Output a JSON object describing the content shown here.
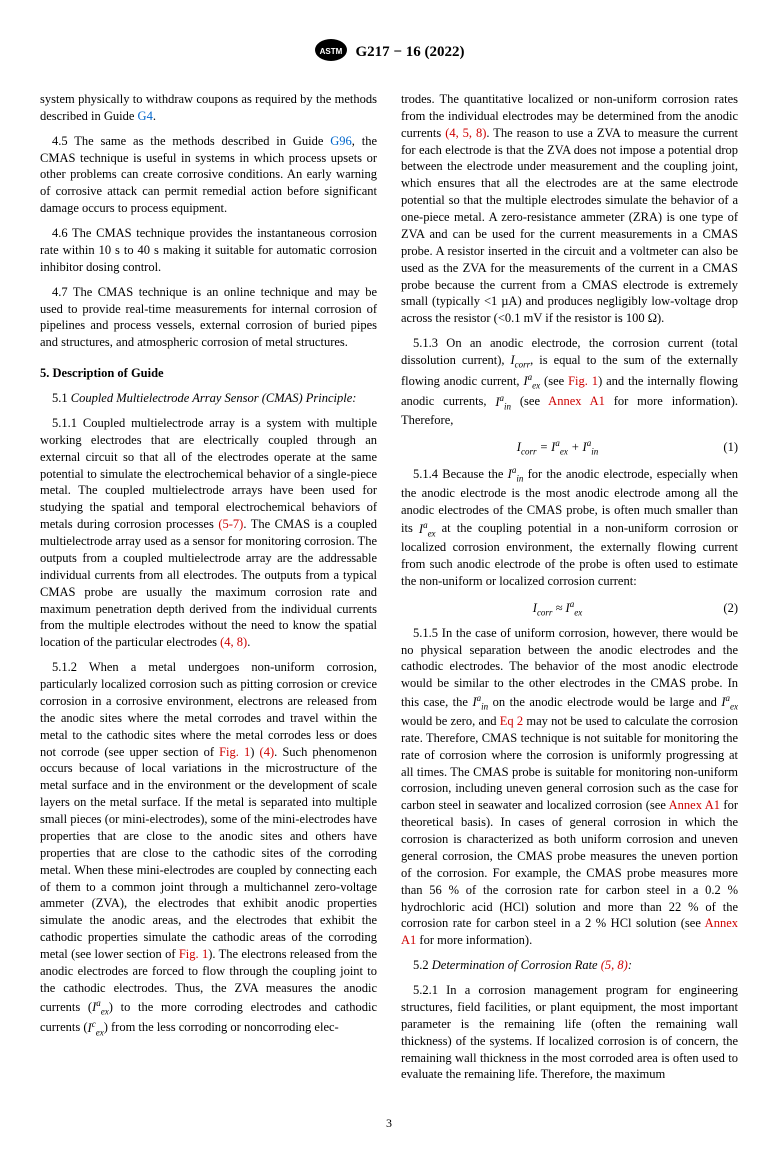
{
  "header": {
    "doc_id": "G217 − 16 (2022)"
  },
  "col1": {
    "p_4_4b": "system physically to withdraw coupons as required by the methods described in Guide ",
    "g4": "G4",
    "p_4_4c": ".",
    "p_4_5a": "4.5 The same as the methods described in Guide ",
    "g96": "G96",
    "p_4_5b": ", the CMAS technique is useful in systems in which process upsets or other problems can create corrosive conditions. An early warning of corrosive attack can permit remedial action before significant damage occurs to process equipment.",
    "p_4_6": "4.6 The CMAS technique provides the instantaneous corrosion rate within 10 s to 40 s making it suitable for automatic corrosion inhibitor dosing control.",
    "p_4_7": "4.7 The CMAS technique is an online technique and may be used to provide real-time measurements for internal corrosion of pipelines and process vessels, external corrosion of buried pipes and structures, and atmospheric corrosion of metal structures.",
    "sec5_title": "5. Description of Guide",
    "s5_1_head": "5.1 ",
    "s5_1_italic": "Coupled Multielectrode Array Sensor (CMAS) Principle:",
    "p_5_1_1a": "5.1.1 Coupled multielectrode array is a system with multiple working electrodes that are electrically coupled through an external circuit so that all of the electrodes operate at the same potential to simulate the electrochemical behavior of a single-piece metal. The coupled multielectrode arrays have been used for studying the spatial and temporal electrochemical behaviors of metals during corrosion processes ",
    "ref_5_7": "(5-7)",
    "p_5_1_1b": ". The CMAS is a coupled multielectrode array used as a sensor for monitoring corrosion. The outputs from a coupled multielectrode array are the addressable individual currents from all electrodes. The outputs from a typical CMAS probe are usually the maximum corrosion rate and maximum penetration depth derived from the individual currents from the multiple electrodes without the need to know the spatial location of the particular electrodes ",
    "ref_4_8": "(4, 8)",
    "p_5_1_1c": ".",
    "p_5_1_2a": "5.1.2 When a metal undergoes non-uniform corrosion, particularly localized corrosion such as pitting corrosion or crevice corrosion in a corrosive environment, electrons are released from the anodic sites where the metal corrodes and travel within the metal to the cathodic sites where the metal corrodes less or does not corrode (see upper section of ",
    "fig1a": "Fig. 1",
    "p_5_1_2b": ") ",
    "ref4": "(4)",
    "p_5_1_2c": ". Such phenomenon occurs because of local variations in the microstructure of the metal surface and in the environment or the development of scale layers on the metal surface. If the metal is separated into multiple small pieces (or mini-electrodes), some of the mini-electrodes have properties that are close to the anodic sites and others have properties that are close to the cathodic sites of the corroding metal. When these mini-electrodes are coupled by connecting each of them to a common joint through a multichannel zero-voltage ammeter (ZVA), the electrodes that exhibit anodic properties simulate the anodic areas, and the electrodes that exhibit the cathodic properties simulate the cathodic areas of the corroding metal (see lower section of ",
    "fig1b": "Fig. 1",
    "p_5_1_2d": "). The electrons released from the anodic electrodes are forced to flow through the coupling joint to the cathodic electrodes. Thus, the ZVA measures the anodic currents (",
    "iaex_html": "<i>I<sup>a</sup><sub>ex</sub></i>",
    "p_5_1_2e": ") to the more corroding electrodes and cathodic currents (",
    "icex_html": "<i>I<sup>c</sup><sub>ex</sub></i>",
    "p_5_1_2f": ") from the less corroding or noncorroding elec-"
  },
  "col2": {
    "p_cont_a": "trodes. The quantitative localized or non-uniform corrosion rates from the individual electrodes may be determined from the anodic currents ",
    "ref_4_5_8": "(4, 5, 8)",
    "p_cont_b": ". The reason to use a ZVA to measure the current for each electrode is that the ZVA does not impose a potential drop between the electrode under measurement and the coupling joint, which ensures that all the electrodes are at the same electrode potential so that the multiple electrodes simulate the behavior of a one-piece metal. A zero-resistance ammeter (ZRA) is one type of ZVA and can be used for the current measurements in a CMAS probe. A resistor inserted in the circuit and a voltmeter can also be used as the ZVA for the measurements of the current in a CMAS probe because the current from a CMAS electrode is extremely small (typically <1 µA) and produces negligibly low-voltage drop across the resistor (<0.1 mV if the resistor is 100 Ω).",
    "p_5_1_3a": "5.1.3 On an anodic electrode, the corrosion current (total dissolution current), ",
    "icorr_html": "<i>I<sub>corr</sub></i>",
    "p_5_1_3b": ", is equal to the sum of the externally flowing anodic current, ",
    "iaex2_html": "<i>I<sup>a</sup><sub>ex</sub></i>",
    "p_5_1_3c": " (see ",
    "fig1c": "Fig. 1",
    "p_5_1_3d": ") and the internally flowing anodic currents, ",
    "iain_html": "<i>I<sup>a</sup><sub>in</sub></i>",
    "p_5_1_3e": " (see ",
    "annexA1a": "Annex A1",
    "p_5_1_3f": " for more information). Therefore,",
    "eq1": "I<sub>corr</sub> = I<sup>a</sup><sub>ex</sub> + I<sup>a</sup><sub>in</sub>",
    "eq1_num": "(1)",
    "p_5_1_4a": "5.1.4 Because the ",
    "iain2_html": "<i>I<sup>a</sup><sub>in</sub></i>",
    "p_5_1_4b": " for the anodic electrode, especially when the anodic electrode is the most anodic electrode among all the anodic electrodes of the CMAS probe, is often much smaller than its ",
    "iaex3_html": "<i>I<sup>a</sup><sub>ex</sub></i>",
    "p_5_1_4c": " at the coupling potential in a non-uniform corrosion or localized corrosion environment, the externally flowing current from such anodic electrode of the probe is often used to estimate the non-uniform or localized corrosion current:",
    "eq2": "I<sub>corr</sub> ≈ I<sup>a</sup><sub>ex</sub>",
    "eq2_num": "(2)",
    "p_5_1_5a": "5.1.5 In the case of uniform corrosion, however, there would be no physical separation between the anodic electrodes and the cathodic electrodes. The behavior of the most anodic electrode would be similar to the other electrodes in the CMAS probe. In this case, the ",
    "iain3_html": "<i>I<sup>a</sup><sub>in</sub></i>",
    "p_5_1_5b": " on the anodic electrode would be large and ",
    "iaex4_html": "<i>I<sup>a</sup><sub>ex</sub></i>",
    "p_5_1_5c": " would be zero, and ",
    "eq2ref": "Eq 2",
    "p_5_1_5d": " may not be used to calculate the corrosion rate. Therefore, CMAS technique is not suitable for monitoring the rate of corrosion where the corrosion is uniformly progressing at all times. The CMAS probe is suitable for monitoring non-uniform corrosion, including uneven general corrosion such as the case for carbon steel in seawater and localized corrosion (see ",
    "annexA1b": "Annex A1",
    "p_5_1_5e": " for theoretical basis). In cases of general corrosion in which the corrosion is characterized as both uniform corrosion and uneven general corrosion, the CMAS probe measures the uneven portion of the corrosion. For example, the CMAS probe measures more than 56 % of the corrosion rate for carbon steel in a 0.2 % hydrochloric acid (HCl) solution and more than 22 % of the corrosion rate for carbon steel in a 2 % HCl solution (see ",
    "annexA1c": "Annex A1",
    "p_5_1_5f": " for more information).",
    "s5_2_head": "5.2 ",
    "s5_2_italic": "Determination of Corrosion Rate ",
    "ref_5_8": "(5, 8)",
    "s5_2_colon": ":",
    "p_5_2_1": "5.2.1 In a corrosion management program for engineering structures, field facilities, or plant equipment, the most important parameter is the remaining life (often the remaining wall thickness) of the systems. If localized corrosion is of concern, the remaining wall thickness in the most corroded area is often used to evaluate the remaining life. Therefore, the maximum"
  },
  "page_num": "3"
}
